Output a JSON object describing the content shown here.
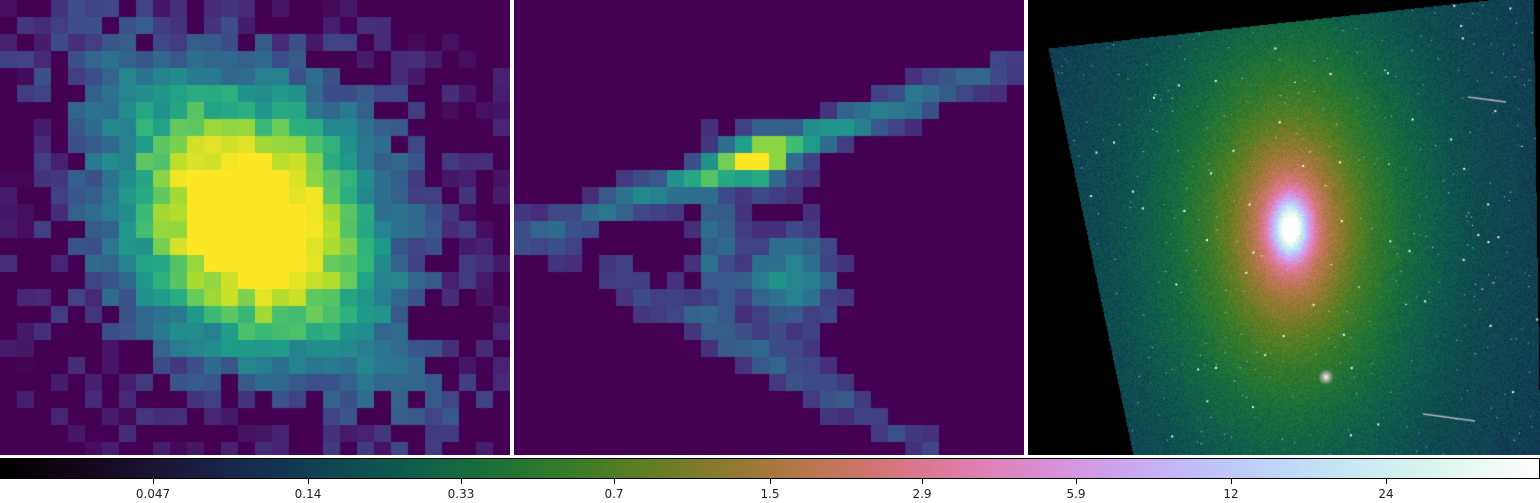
{
  "panels": [
    {
      "name": "panel-1",
      "content": "pixelated blob image, viridis colormap"
    },
    {
      "name": "panel-2",
      "content": "pixelated ring/arc structure, viridis colormap"
    },
    {
      "name": "panel-3",
      "content": "galaxy image in cubehelix colormap"
    }
  ],
  "colorbar": {
    "colormap": "cubehelix",
    "scale": "log",
    "ticks": [
      "0.047",
      "0.14",
      "0.33",
      "0.7",
      "1.5",
      "2.9",
      "5.9",
      "12",
      "24"
    ]
  }
}
